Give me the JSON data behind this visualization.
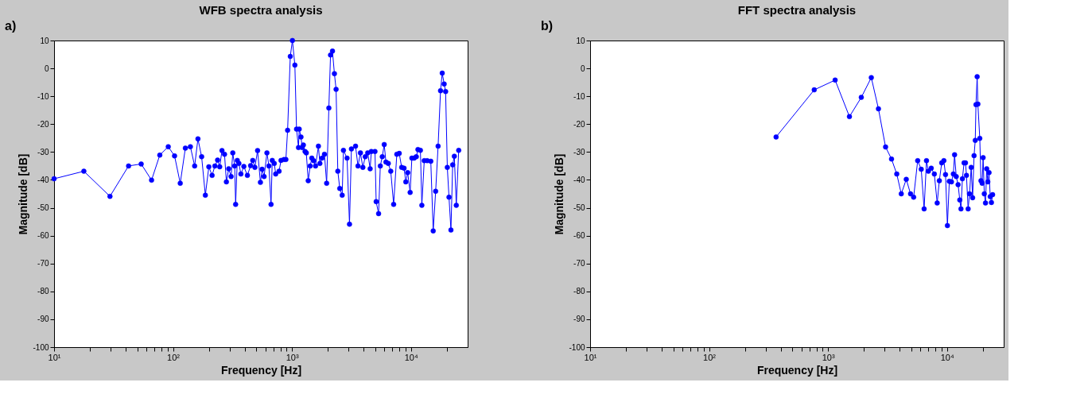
{
  "chart_data": [
    {
      "type": "line",
      "title": "WFB spectra analysis",
      "xlabel": "Frequency [Hz]",
      "ylabel": "Magnitude [dB]",
      "annotations": [
        "a)"
      ],
      "log": "x",
      "grid": false,
      "marker": "circle",
      "line_style": "solid",
      "xlim": [
        10,
        30000
      ],
      "ylim": [
        -100,
        10
      ],
      "xticks": [
        {
          "value": 10,
          "label": "10¹"
        },
        {
          "value": 20,
          "label": null
        },
        {
          "value": 30,
          "label": null
        },
        {
          "value": 40,
          "label": null
        },
        {
          "value": 50,
          "label": null
        },
        {
          "value": 60,
          "label": null
        },
        {
          "value": 70,
          "label": null
        },
        {
          "value": 80,
          "label": null
        },
        {
          "value": 90,
          "label": null
        },
        {
          "value": 100,
          "label": "10²"
        },
        {
          "value": 200,
          "label": null
        },
        {
          "value": 300,
          "label": null
        },
        {
          "value": 400,
          "label": null
        },
        {
          "value": 500,
          "label": null
        },
        {
          "value": 600,
          "label": null
        },
        {
          "value": 700,
          "label": null
        },
        {
          "value": 800,
          "label": null
        },
        {
          "value": 900,
          "label": null
        },
        {
          "value": 1000,
          "label": "10³"
        },
        {
          "value": 2000,
          "label": null
        },
        {
          "value": 3000,
          "label": null
        },
        {
          "value": 4000,
          "label": null
        },
        {
          "value": 5000,
          "label": null
        },
        {
          "value": 6000,
          "label": null
        },
        {
          "value": 7000,
          "label": null
        },
        {
          "value": 8000,
          "label": null
        },
        {
          "value": 9000,
          "label": null
        },
        {
          "value": 10000,
          "label": "10⁴"
        },
        {
          "value": 20000,
          "label": null
        }
      ],
      "yticks": [
        -100,
        -90,
        -80,
        -70,
        -60,
        -50,
        -40,
        -30,
        -20,
        -10,
        0,
        10
      ],
      "series": [
        {
          "color": "#0000ff",
          "x": [
            10,
            17.8,
            29.5,
            42.3,
            54,
            66,
            77.4,
            91.2,
            103,
            115,
            127,
            140,
            152,
            162,
            174,
            187,
            200,
            213,
            225,
            237,
            247,
            258,
            271,
            281,
            294,
            308,
            318,
            330,
            336,
            347,
            358,
            372,
            394,
            422,
            449,
            468,
            488,
            514,
            543,
            561,
            583,
            616,
            640,
            667,
            683,
            710,
            730,
            779,
            809,
            857,
            889,
            919,
            968,
            1009,
            1058,
            1093,
            1135,
            1151,
            1191,
            1219,
            1247,
            1289,
            1320,
            1370,
            1423,
            1469,
            1520,
            1578,
            1669,
            1717,
            1791,
            1876,
            1957,
            2043,
            2110,
            2191,
            2275,
            2350,
            2430,
            2523,
            2644,
            2709,
            2906,
            3046,
            3162,
            3425,
            3590,
            3764,
            3945,
            4134,
            4335,
            4543,
            4648,
            4989,
            5105,
            5351,
            5530,
            5746,
            5966,
            6166,
            6457,
            6770,
            7161,
            7614,
            7979,
            8363,
            8761,
            9061,
            9401,
            9856,
            10190,
            10640,
            11100,
            11460,
            12020,
            12360,
            12950,
            13700,
            14700,
            15400,
            16150,
            16930,
            17750,
            18340,
            19040,
            19580,
            20240,
            20910,
            21710,
            22450,
            23180,
            24080,
            25230
          ],
          "values": [
            -39.6,
            -36.9,
            -45.9,
            -35.0,
            -34.3,
            -40.1,
            -31.1,
            -28.1,
            -31.4,
            -41.2,
            -28.6,
            -28.1,
            -35.0,
            -25.3,
            -31.7,
            -45.5,
            -35.3,
            -38.4,
            -35.0,
            -32.9,
            -35.3,
            -29.5,
            -30.8,
            -40.7,
            -36.0,
            -38.8,
            -30.3,
            -35.0,
            -48.8,
            -33.0,
            -34.1,
            -37.9,
            -35.2,
            -38.4,
            -34.9,
            -33.0,
            -35.5,
            -29.5,
            -40.9,
            -36.2,
            -38.8,
            -30.3,
            -35.0,
            -48.8,
            -33.0,
            -34.1,
            -37.9,
            -36.9,
            -33.0,
            -32.7,
            -32.7,
            -22.2,
            4.3,
            10.0,
            1.2,
            -21.8,
            -28.4,
            -21.8,
            -24.6,
            -28.4,
            -27.5,
            -29.8,
            -30.3,
            -40.3,
            -35.0,
            -32.2,
            -33.1,
            -35.0,
            -27.9,
            -34.1,
            -32.2,
            -30.8,
            -41.2,
            -14.2,
            4.8,
            6.2,
            -1.9,
            -7.5,
            -36.9,
            -43.1,
            -45.5,
            -29.4,
            -32.2,
            -55.9,
            -28.9,
            -27.9,
            -35.0,
            -30.3,
            -35.5,
            -31.7,
            -30.3,
            -36.0,
            -29.8,
            -29.8,
            -47.8,
            -52.1,
            -35.0,
            -31.7,
            -27.3,
            -33.6,
            -34.1,
            -36.9,
            -48.8,
            -30.8,
            -30.5,
            -35.5,
            -35.8,
            -40.7,
            -37.4,
            -44.5,
            -32.2,
            -32.2,
            -31.7,
            -29.1,
            -29.4,
            -49.1,
            -33.1,
            -33.1,
            -33.3,
            -58.3,
            -44.1,
            -27.9,
            -8.0,
            -1.7,
            -5.6,
            -8.3,
            -35.5,
            -46.2,
            -58.0,
            -34.6,
            -31.5,
            -49.1,
            -29.4
          ]
        }
      ]
    },
    {
      "type": "line",
      "title": "FFT spectra analysis",
      "xlabel": "Frequency [Hz]",
      "ylabel": "Magnitude [dB]",
      "annotations": [
        "b)"
      ],
      "log": "x",
      "grid": false,
      "marker": "circle",
      "line_style": "solid",
      "xlim": [
        10,
        30000
      ],
      "ylim": [
        -100,
        10
      ],
      "xticks": [
        {
          "value": 10,
          "label": "10¹"
        },
        {
          "value": 20,
          "label": null
        },
        {
          "value": 30,
          "label": null
        },
        {
          "value": 40,
          "label": null
        },
        {
          "value": 50,
          "label": null
        },
        {
          "value": 60,
          "label": null
        },
        {
          "value": 70,
          "label": null
        },
        {
          "value": 80,
          "label": null
        },
        {
          "value": 90,
          "label": null
        },
        {
          "value": 100,
          "label": "10²"
        },
        {
          "value": 200,
          "label": null
        },
        {
          "value": 300,
          "label": null
        },
        {
          "value": 400,
          "label": null
        },
        {
          "value": 500,
          "label": null
        },
        {
          "value": 600,
          "label": null
        },
        {
          "value": 700,
          "label": null
        },
        {
          "value": 800,
          "label": null
        },
        {
          "value": 900,
          "label": null
        },
        {
          "value": 1000,
          "label": "10³"
        },
        {
          "value": 2000,
          "label": null
        },
        {
          "value": 3000,
          "label": null
        },
        {
          "value": 4000,
          "label": null
        },
        {
          "value": 5000,
          "label": null
        },
        {
          "value": 6000,
          "label": null
        },
        {
          "value": 7000,
          "label": null
        },
        {
          "value": 8000,
          "label": null
        },
        {
          "value": 9000,
          "label": null
        },
        {
          "value": 10000,
          "label": "10⁴"
        },
        {
          "value": 20000,
          "label": null
        }
      ],
      "yticks": [
        -100,
        -90,
        -80,
        -70,
        -60,
        -50,
        -40,
        -30,
        -20,
        -10,
        0,
        10
      ],
      "series": [
        {
          "color": "#0000ff",
          "x": [
            366,
            766,
            1148,
            1514,
            1905,
            2312,
            2655,
            3048,
            3420,
            3785,
            4130,
            4550,
            4943,
            5248,
            5675,
            6081,
            6427,
            6730,
            6982,
            7379,
            7834,
            8279,
            8630,
            9036,
            9419,
            9727,
            10090,
            10470,
            10910,
            11320,
            11590,
            11970,
            12410,
            12820,
            13120,
            13490,
            13930,
            14320,
            14590,
            15070,
            15490,
            15990,
            16440,
            16900,
            17300,
            17540,
            17950,
            18200,
            18880,
            19320,
            19770,
            20140,
            20610,
            21090,
            21580,
            22080,
            22590,
            23120,
            23660,
            24210
          ],
          "values": [
            -24.6,
            -7.7,
            -4.2,
            -17.3,
            -10.4,
            -3.3,
            -14.5,
            -28.2,
            -32.5,
            -37.9,
            -45.0,
            -39.8,
            -45.0,
            -46.2,
            -33.1,
            -36.2,
            -50.4,
            -33.1,
            -36.9,
            -35.8,
            -37.9,
            -48.3,
            -40.3,
            -33.9,
            -33.1,
            -38.1,
            -56.4,
            -40.5,
            -40.7,
            -37.9,
            -31.0,
            -38.8,
            -41.7,
            -47.2,
            -50.4,
            -39.6,
            -33.9,
            -33.9,
            -38.4,
            -50.4,
            -45.0,
            -35.5,
            -46.4,
            -31.3,
            -25.8,
            -13.0,
            -3.0,
            -12.8,
            -25.1,
            -40.3,
            -41.2,
            -32.0,
            -45.0,
            -48.3,
            -36.0,
            -40.7,
            -37.4,
            -46.0,
            -48.1,
            -45.3
          ]
        }
      ]
    }
  ]
}
